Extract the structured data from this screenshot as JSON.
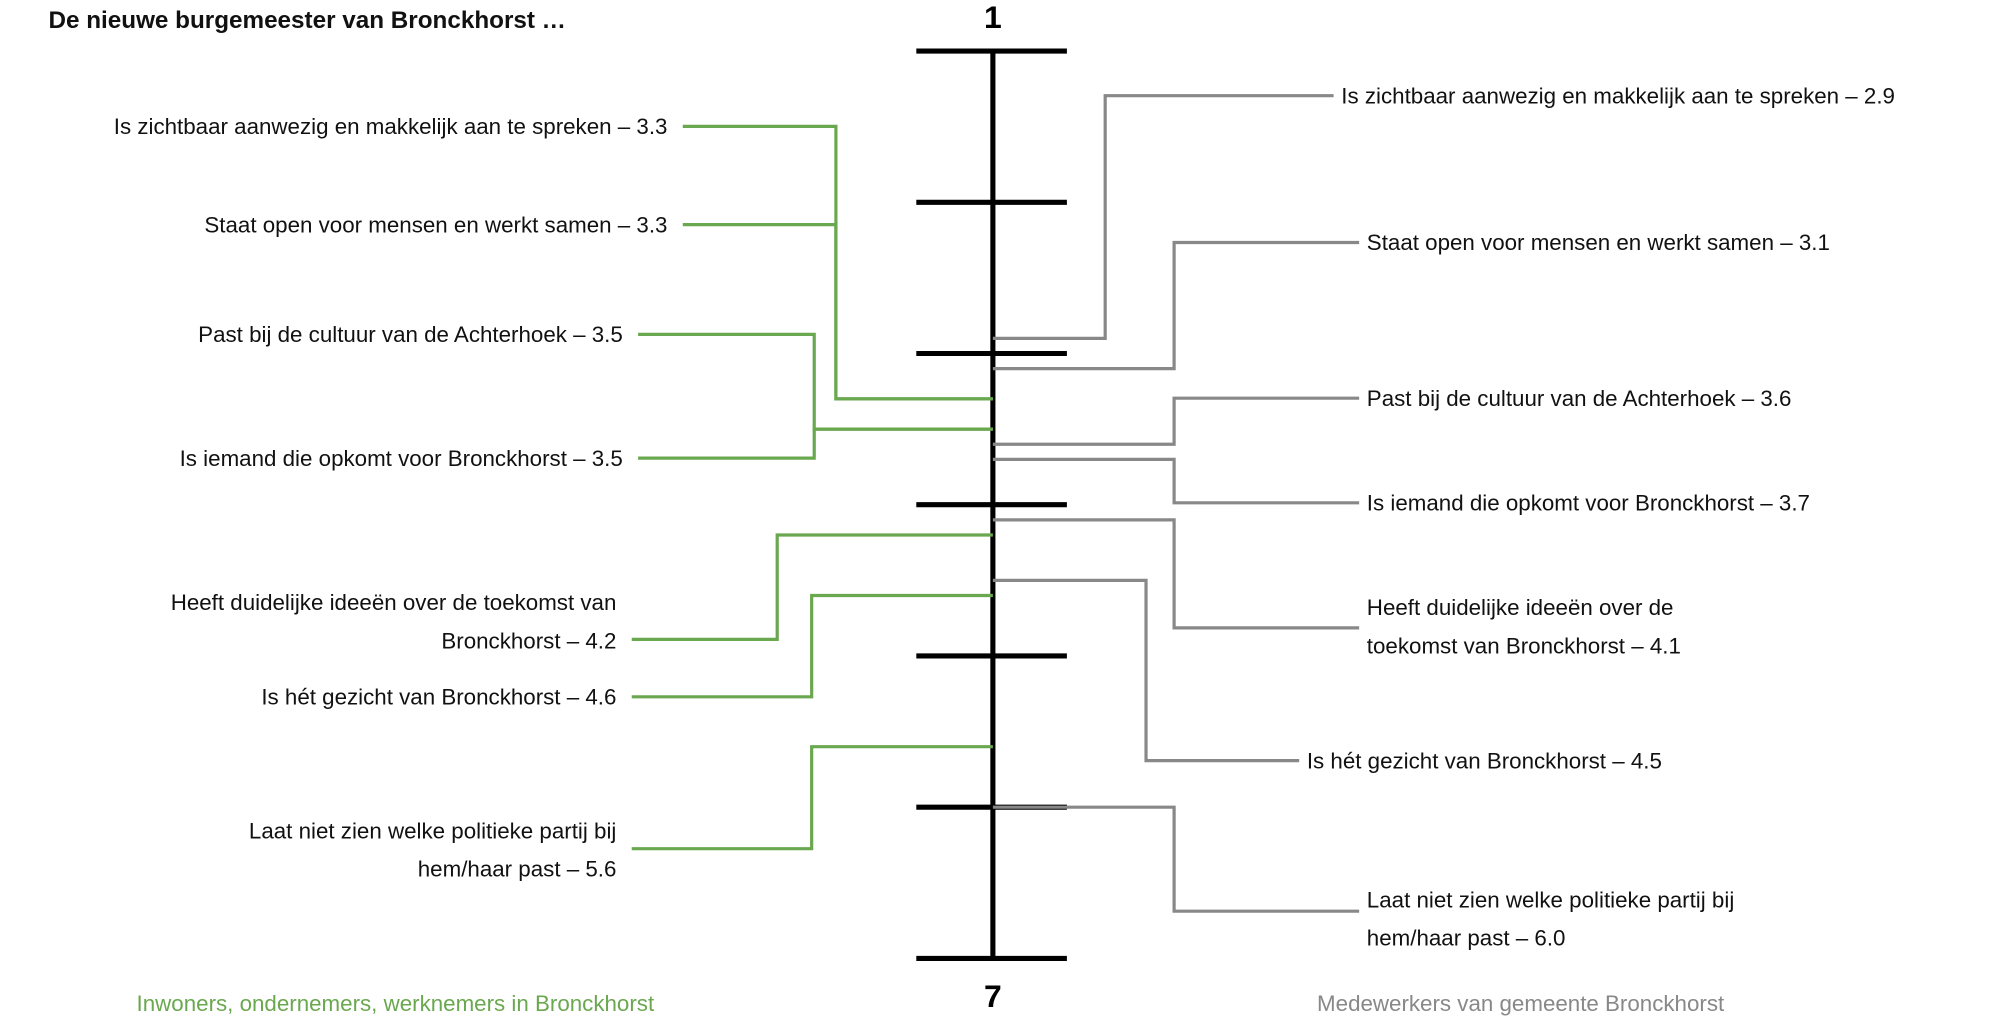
{
  "chart_data": {
    "type": "scale-comparison",
    "title": "De nieuwe burgemeester van Bronckhorst …",
    "ylim": [
      1,
      7
    ],
    "yticks": [
      1,
      2,
      3,
      4,
      5,
      6,
      7
    ],
    "series": [
      {
        "name": "Inwoners, ondernemers, werknemers in Bronckhorst",
        "color": "#6aa84f",
        "values": [
          3.3,
          3.3,
          3.5,
          3.5,
          4.2,
          4.6,
          5.6
        ],
        "value_labels": [
          "Is zichtbaar aanwezig en makkelijk aan te spreken – 3.3",
          "Staat open voor mensen en werkt samen – 3.3",
          "Past bij de cultuur van de Achterhoek – 3.5",
          "Is iemand die opkomt voor Bronckhorst – 3.5",
          "Heeft duidelijke ideeën over de toekomst van\nBronckhorst – 4.2",
          "Is hét gezicht van Bronckhorst – 4.6",
          "Laat niet zien welke politieke partij bij\nhem/haar past – 5.6"
        ]
      },
      {
        "name": "Medewerkers van gemeente Bronckhorst",
        "color": "#888888",
        "values": [
          2.9,
          3.1,
          3.6,
          3.7,
          4.1,
          4.5,
          6.0
        ],
        "value_labels": [
          "Is zichtbaar aanwezig en makkelijk aan te spreken – 2.9",
          "Staat open voor mensen en werkt samen – 3.1",
          "Past bij de cultuur van de Achterhoek – 3.6",
          "Is iemand die opkomt voor Bronckhorst – 3.7",
          "Heeft duidelijke ideeën over de\ntoekomst van Bronckhorst – 4.1",
          "Is hét gezicht van Bronckhorst – 4.5",
          "Laat niet zien welke politieke partij bij\nhem/haar past – 6.0"
        ]
      }
    ]
  }
}
